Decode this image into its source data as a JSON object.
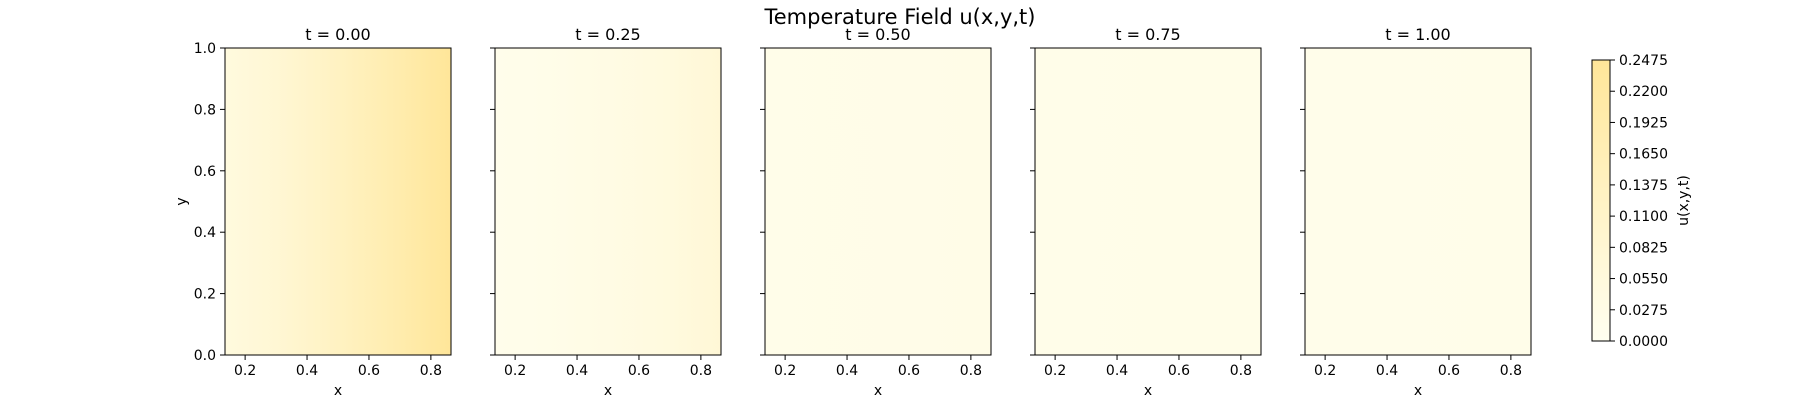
{
  "chart_data": {
    "type": "heatmap",
    "title": "Temperature Field u(x,y,t)",
    "xlabel": "x",
    "ylabel": "y",
    "xlim": [
      0.135,
      0.865
    ],
    "ylim": [
      0.0,
      1.0
    ],
    "xticks": [
      "0.2",
      "0.4",
      "0.6",
      "0.8"
    ],
    "xtick_values": [
      0.2,
      0.4,
      0.6,
      0.8
    ],
    "yticks": [
      "0.0",
      "0.2",
      "0.4",
      "0.6",
      "0.8",
      "1.0"
    ],
    "ytick_values": [
      0.0,
      0.2,
      0.4,
      0.6,
      0.8,
      1.0
    ],
    "panels": [
      {
        "title": "t = 0.00",
        "u_at_x": [
          [
            0.135,
            0.05
          ],
          [
            0.3,
            0.08
          ],
          [
            0.5,
            0.13
          ],
          [
            0.7,
            0.19
          ],
          [
            0.865,
            0.25
          ]
        ]
      },
      {
        "title": "t = 0.25",
        "u_at_x": [
          [
            0.135,
            0.015
          ],
          [
            0.3,
            0.02
          ],
          [
            0.5,
            0.035
          ],
          [
            0.7,
            0.05
          ],
          [
            0.865,
            0.075
          ]
        ]
      },
      {
        "title": "t = 0.50",
        "u_at_x": [
          [
            0.135,
            0.02
          ],
          [
            0.865,
            0.025
          ]
        ]
      },
      {
        "title": "t = 0.75",
        "u_at_x": [
          [
            0.135,
            0.02
          ],
          [
            0.865,
            0.022
          ]
        ]
      },
      {
        "title": "t = 1.00",
        "u_at_x": [
          [
            0.135,
            0.018
          ],
          [
            0.865,
            0.02
          ]
        ]
      }
    ],
    "colorbar": {
      "label": "u(x,y,t)",
      "range": [
        0.0,
        0.2475
      ],
      "ticks": [
        "0.2475",
        "0.2200",
        "0.1925",
        "0.1650",
        "0.1375",
        "0.1100",
        "0.0825",
        "0.0550",
        "0.0275",
        "0.0000"
      ],
      "tick_values": [
        0.2475,
        0.22,
        0.1925,
        0.165,
        0.1375,
        0.11,
        0.0825,
        0.055,
        0.0275,
        0.0
      ],
      "colormap_low": "#fffff0",
      "colormap_high": "#ffe699"
    }
  }
}
